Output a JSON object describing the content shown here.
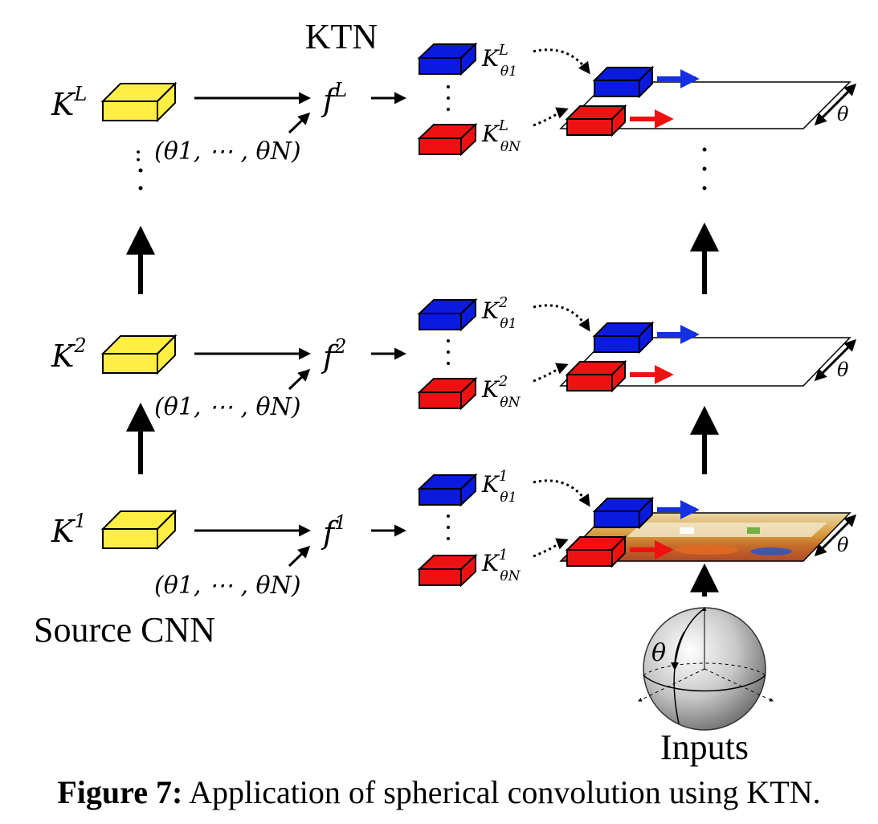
{
  "ktn_label": "KTN",
  "source_label": "Source CNN",
  "inputs_label": "Inputs",
  "theta_symbol": "θ",
  "theta_tuple": "(θ1, ⋯ , θN)",
  "source_kernels": [
    {
      "base": "K",
      "sup": "L"
    },
    {
      "base": "K",
      "sup": "2"
    },
    {
      "base": "K",
      "sup": "1"
    }
  ],
  "functions": [
    {
      "base": "f",
      "sup": "L"
    },
    {
      "base": "f",
      "sup": "2"
    },
    {
      "base": "f",
      "sup": "1"
    }
  ],
  "ktn_kernels": [
    {
      "top": {
        "base": "K",
        "sup": "L",
        "sub": "θ1"
      },
      "bottom": {
        "base": "K",
        "sup": "L",
        "sub": "θN"
      }
    },
    {
      "top": {
        "base": "K",
        "sup": "2",
        "sub": "θ1"
      },
      "bottom": {
        "base": "K",
        "sup": "2",
        "sub": "θN"
      }
    },
    {
      "top": {
        "base": "K",
        "sup": "1",
        "sub": "θ1"
      },
      "bottom": {
        "base": "K",
        "sup": "1",
        "sub": "θN"
      }
    }
  ],
  "caption": {
    "prefix": "Figure 7:",
    "text": " Application of spherical convolution using KTN."
  },
  "colors": {
    "source_kernel": "#ffee44",
    "kernel_top": "#0a1adf",
    "kernel_bottom": "#ee1111",
    "arrow_blue": "#1530e0",
    "arrow_red": "#ee1111"
  }
}
